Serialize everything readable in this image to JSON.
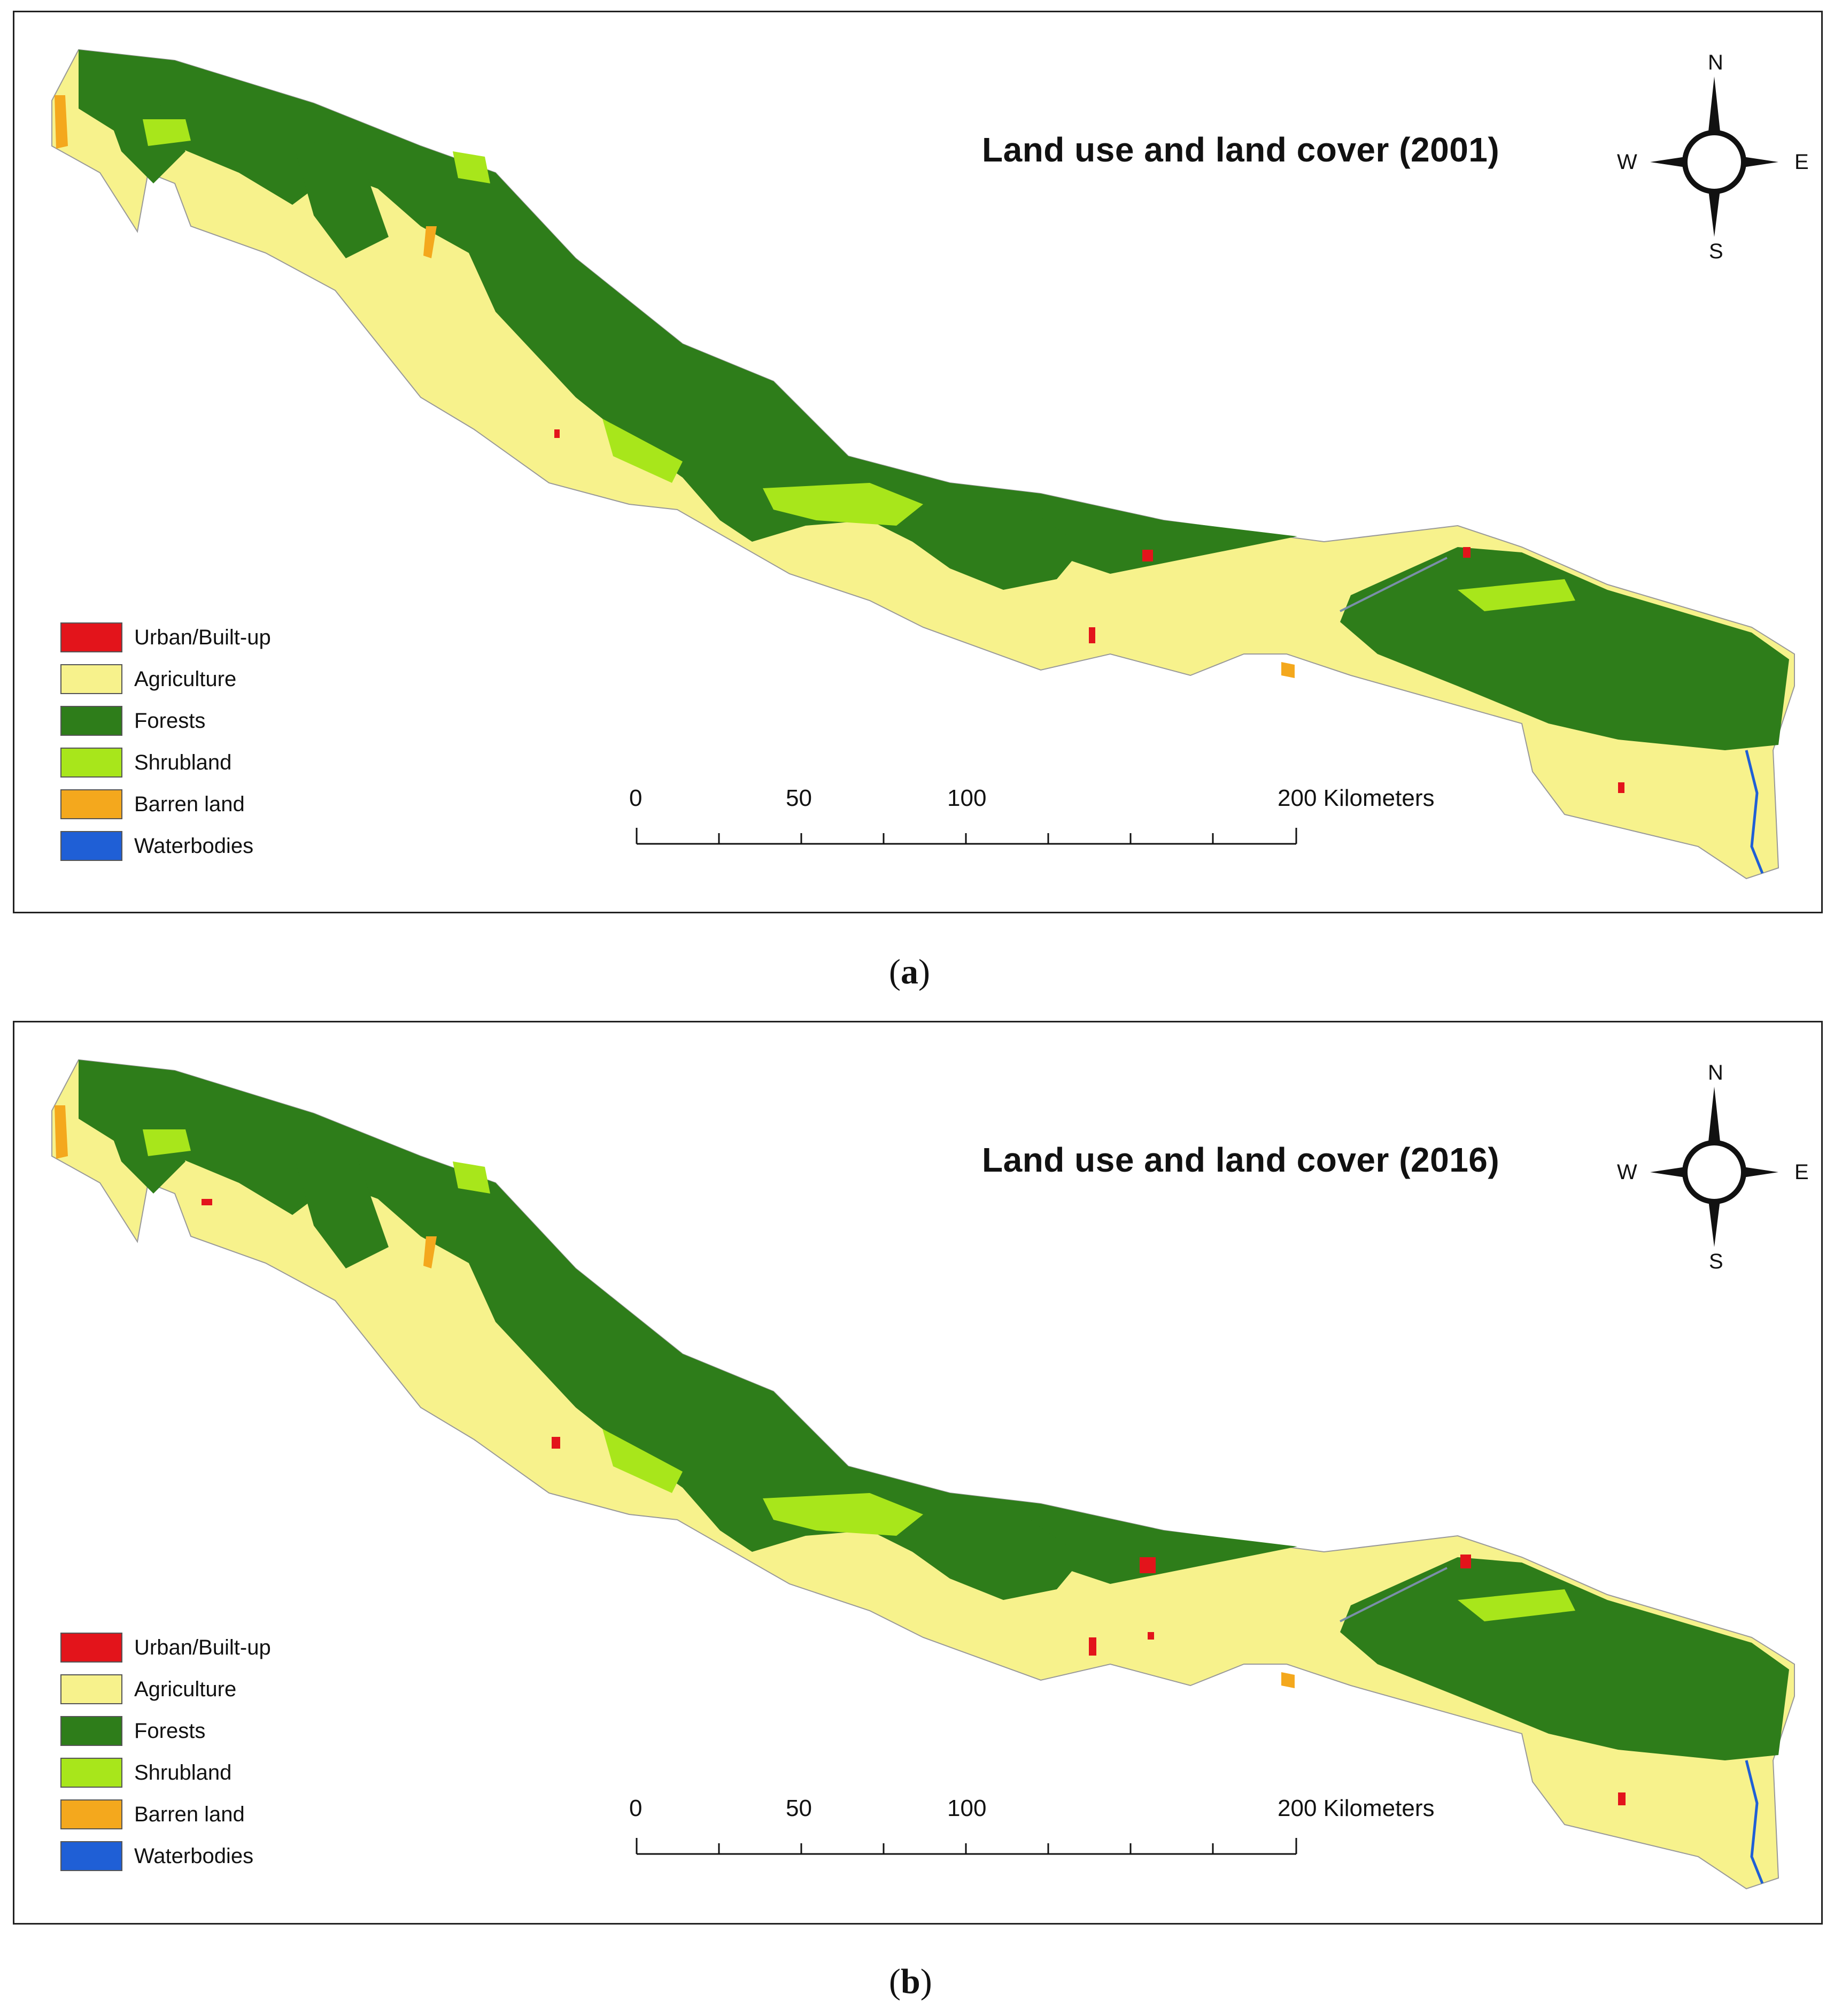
{
  "panels": [
    {
      "id": "a",
      "title": "Land use and land cover (2001)",
      "caption_prefix": "(",
      "caption_letter": "a",
      "caption_suffix": ")"
    },
    {
      "id": "b",
      "title": "Land use and land cover (2016)",
      "caption_prefix": "(",
      "caption_letter": "b",
      "caption_suffix": ")"
    }
  ],
  "compass": {
    "n": "N",
    "s": "S",
    "e": "E",
    "w": "W"
  },
  "legend": [
    {
      "label": "Urban/Built-up",
      "color": "#e3141b"
    },
    {
      "label": "Agriculture",
      "color": "#f7f28c"
    },
    {
      "label": "Forests",
      "color": "#2e7d1a"
    },
    {
      "label": "Shrubland",
      "color": "#a8e61b"
    },
    {
      "label": "Barren land",
      "color": "#f4a81d"
    },
    {
      "label": "Waterbodies",
      "color": "#1f5fd6"
    }
  ],
  "scale_bar": {
    "labels": [
      "0",
      "50",
      "100",
      "200 Kilometers"
    ]
  },
  "colors": {
    "agriculture": "#f7f28c",
    "forest": "#2e7d1a",
    "shrub": "#a8e61b",
    "urban": "#e3141b",
    "barren": "#f4a81d",
    "water": "#1f5fd6"
  }
}
